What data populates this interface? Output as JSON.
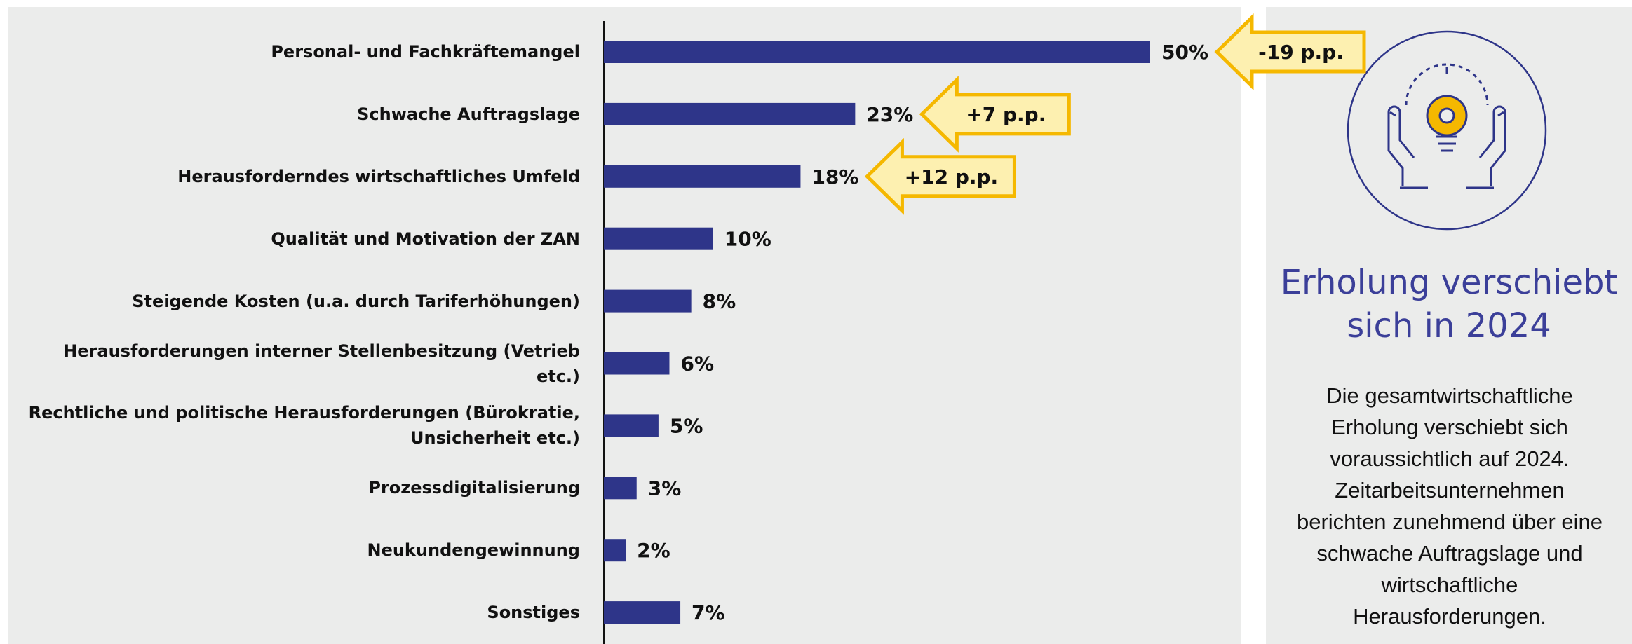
{
  "chart_data": {
    "type": "bar",
    "orientation": "horizontal",
    "categories": [
      "Personal- und Fachkräftemangel",
      "Schwache Auftragslage",
      "Herausforderndes wirtschaftliches Umfeld",
      "Qualität und Motivation der ZAN",
      "Steigende Kosten (u.a. durch Tariferhöhungen)",
      "Herausforderungen interner Stellenbesitzung (Vetrieb etc.)",
      "Rechtliche und politische Herausforderungen (Bürokratie, Unsicherheit etc.)",
      "Prozessdigitalisierung",
      "Neukundengewinnung",
      "Sonstiges"
    ],
    "values": [
      50,
      23,
      18,
      10,
      8,
      6,
      5,
      3,
      2,
      7
    ],
    "value_labels": [
      "50%",
      "23%",
      "18%",
      "10%",
      "8%",
      "6%",
      "5%",
      "3%",
      "2%",
      "7%"
    ],
    "color": "#2e3589",
    "xlim": [
      0,
      50
    ],
    "annotations": [
      "-19 p.p.",
      "+7 p.p.",
      "+12 p.p."
    ],
    "annotation_color": "#fdf0b0"
  },
  "panel": {
    "title": "Erholung verschiebt sich in 2024",
    "text": "Die gesamtwirtschaftliche Erholung verschiebt sich voraussichtlich auf 2024. Zeitarbeitsunternehmen berichten zunehmend über eine schwache Auftragslage und wirtschaftliche Herausforderungen."
  }
}
